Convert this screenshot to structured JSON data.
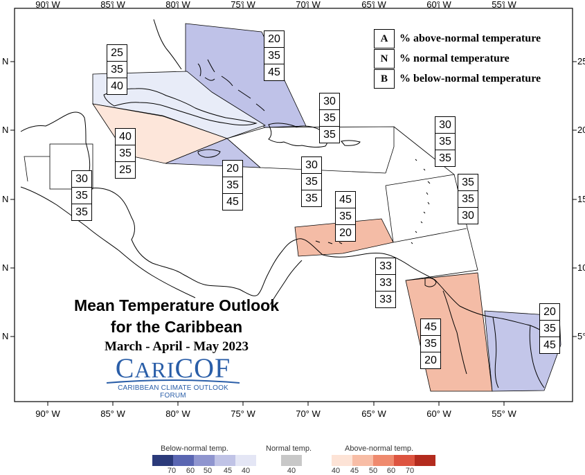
{
  "map": {
    "lon_labels": [
      "90° W",
      "85° W",
      "80° W",
      "75° W",
      "70° W",
      "65° W",
      "60° W",
      "55° W"
    ],
    "lat_labels_left": [
      "N",
      "N",
      "N",
      "N",
      "N"
    ],
    "lat_labels_right": [
      "25",
      "20",
      "15",
      "10",
      "5°"
    ],
    "colors": {
      "below_light": "#e8ecf8",
      "below_mid": "#b8bce3",
      "above_light": "#fde3d6",
      "above_mid": "#f4b9a2",
      "coast": "#000000",
      "border": "#000000"
    },
    "regions": [
      {
        "name": "bahamas",
        "category": "below-normal",
        "shade": "mid"
      },
      {
        "name": "cuba",
        "category": "below-normal",
        "shade": "light"
      },
      {
        "name": "cayman-islands",
        "category": "above-normal",
        "shade": "light"
      },
      {
        "name": "jamaica",
        "category": "below-normal",
        "shade": "mid"
      },
      {
        "name": "abc-islands",
        "category": "above-normal",
        "shade": "mid"
      },
      {
        "name": "guianas-west",
        "category": "above-normal",
        "shade": "mid"
      },
      {
        "name": "suriname-french-guiana",
        "category": "below-normal",
        "shade": "mid"
      }
    ]
  },
  "legend": {
    "items": [
      {
        "key": "A",
        "text": "% above-normal temperature"
      },
      {
        "key": "N",
        "text": "% normal temperature"
      },
      {
        "key": "B",
        "text": "% below-normal temperature"
      }
    ]
  },
  "probabilities": [
    {
      "id": "bahamas",
      "values": [
        "20",
        "35",
        "45"
      ]
    },
    {
      "id": "cuba",
      "values": [
        "25",
        "35",
        "40"
      ]
    },
    {
      "id": "cayman",
      "values": [
        "40",
        "35",
        "25"
      ]
    },
    {
      "id": "belize",
      "values": [
        "30",
        "35",
        "35"
      ]
    },
    {
      "id": "jamaica",
      "values": [
        "20",
        "35",
        "45"
      ]
    },
    {
      "id": "hispaniola-north",
      "values": [
        "30",
        "35",
        "35"
      ]
    },
    {
      "id": "hispaniola-south",
      "values": [
        "30",
        "35",
        "35"
      ]
    },
    {
      "id": "leeward-islands",
      "values": [
        "30",
        "35",
        "35"
      ]
    },
    {
      "id": "windward-islands",
      "values": [
        "35",
        "35",
        "30"
      ]
    },
    {
      "id": "abc-islands",
      "values": [
        "45",
        "35",
        "20"
      ]
    },
    {
      "id": "trinidad",
      "values": [
        "33",
        "33",
        "33"
      ]
    },
    {
      "id": "guyana",
      "values": [
        "45",
        "35",
        "20"
      ]
    },
    {
      "id": "suriname",
      "values": [
        "20",
        "35",
        "45"
      ]
    }
  ],
  "title": {
    "line1": "Mean Temperature Outlook",
    "line2": "for the Caribbean",
    "period": "March - April - May 2023"
  },
  "logo": {
    "word_a": "C",
    "word_b": "ARI",
    "word_c": "COF",
    "subtitle": "CARIBBEAN CLIMATE OUTLOOK FORUM",
    "color": "#2a5ea8"
  },
  "color_scale": {
    "below_title": "Below-normal temp.",
    "normal_title": "Normal temp.",
    "above_title": "Above-normal temp.",
    "below_labels": [
      "70",
      "60",
      "50",
      "45",
      "40"
    ],
    "normal_label": "40",
    "above_labels": [
      "40",
      "45",
      "50",
      "60",
      "70"
    ],
    "below_colors": [
      "#2b3a7a",
      "#5a66b2",
      "#8f95cf",
      "#c0c3e6",
      "#e4e6f5"
    ],
    "normal_color": "#c8c8c8",
    "above_colors": [
      "#fde3d6",
      "#f8bda6",
      "#ef8a6e",
      "#dd5440",
      "#b32b1e"
    ]
  }
}
